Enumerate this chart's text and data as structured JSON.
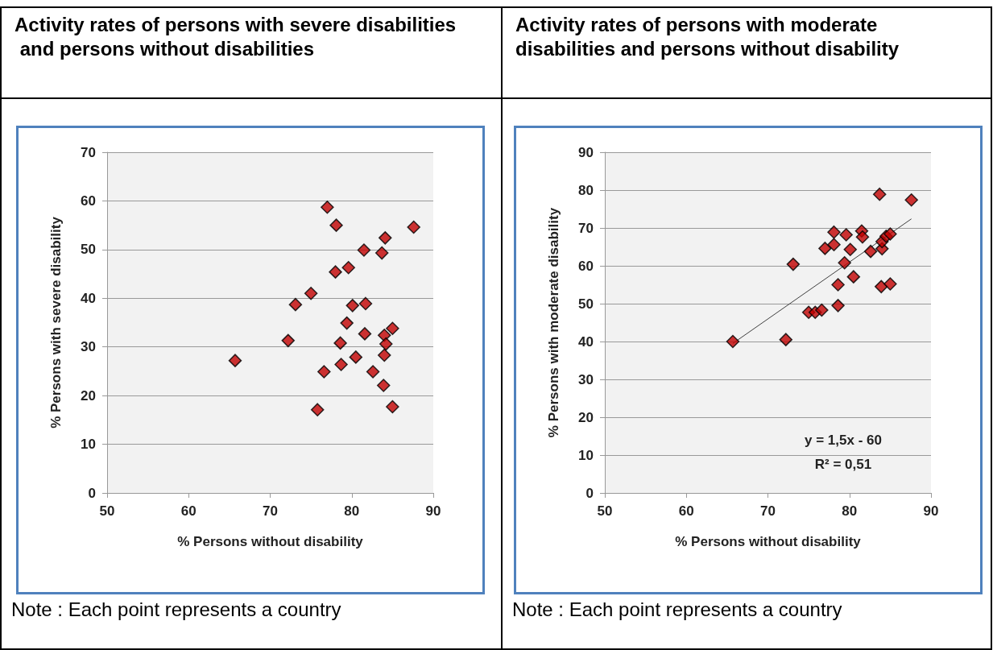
{
  "chart_data": [
    {
      "type": "scatter",
      "title": "Activity rates of persons with severe disabilities\n and persons without disabilities",
      "xlabel": "% Persons without disability",
      "ylabel": "% Persons with severe disability",
      "xlim": [
        50,
        90
      ],
      "xticks": [
        50,
        60,
        70,
        80,
        90
      ],
      "ylim": [
        0,
        70
      ],
      "yticks": [
        0,
        10,
        20,
        30,
        40,
        50,
        60,
        70
      ],
      "grid": "y",
      "marker": "diamond",
      "series": [
        {
          "color": "#c00000",
          "x": [
            65.7,
            72.2,
            73.1,
            75,
            75.8,
            76.6,
            77,
            78.1,
            78,
            78.6,
            78.7,
            79.4,
            79.6,
            80.1,
            80.5,
            81.5,
            81.6,
            81.7,
            82.6,
            83.7,
            83.9,
            84.1,
            84,
            84.2,
            84,
            85,
            85,
            87.6
          ],
          "values": [
            27.2,
            31.3,
            38.7,
            41,
            17.1,
            24.9,
            58.7,
            55,
            45.4,
            30.8,
            26.4,
            34.9,
            46.3,
            38.5,
            27.9,
            49.9,
            32.7,
            38.9,
            24.9,
            49.3,
            22.1,
            52.4,
            32.4,
            30.6,
            28.3,
            33.8,
            17.7,
            54.6
          ]
        }
      ],
      "annotations": [
        "Note : Each point represents a country"
      ]
    },
    {
      "type": "scatter",
      "title": "Activity rates of persons with moderate disabilities and persons without disability",
      "xlabel": "% Persons without disability",
      "ylabel": "% Persons with moderate disability",
      "xlim": [
        50,
        90
      ],
      "xticks": [
        50,
        60,
        70,
        80,
        90
      ],
      "ylim": [
        0,
        90
      ],
      "yticks": [
        0,
        10,
        20,
        30,
        40,
        50,
        60,
        70,
        80,
        90
      ],
      "grid": "y",
      "marker": "diamond",
      "series": [
        {
          "color": "#c00000",
          "x": [
            65.7,
            72.2,
            73.1,
            75,
            75.8,
            76.6,
            77,
            78.1,
            78.1,
            78.6,
            78.6,
            79.4,
            79.6,
            80.1,
            80.5,
            81.5,
            81.6,
            82.6,
            83.7,
            83.9,
            84,
            84,
            84.5,
            85,
            85,
            87.6
          ],
          "values": [
            40,
            40.5,
            60.4,
            47.7,
            47.7,
            48.3,
            64.6,
            68.9,
            65.6,
            55,
            49.5,
            60.8,
            68.2,
            64.3,
            57.1,
            69.2,
            67.6,
            63.8,
            78.9,
            54.5,
            64.5,
            66.4,
            67.8,
            68.4,
            55.2,
            77.4
          ]
        },
        {
          "type": "line",
          "marker": "none",
          "color": "#404040",
          "x": [
            65.7,
            87.6
          ],
          "values": [
            39.5,
            72.4
          ]
        }
      ],
      "annotations": [
        "y = 1,5x - 60",
        "R² = 0,51",
        "Note : Each point represents a country"
      ]
    }
  ]
}
